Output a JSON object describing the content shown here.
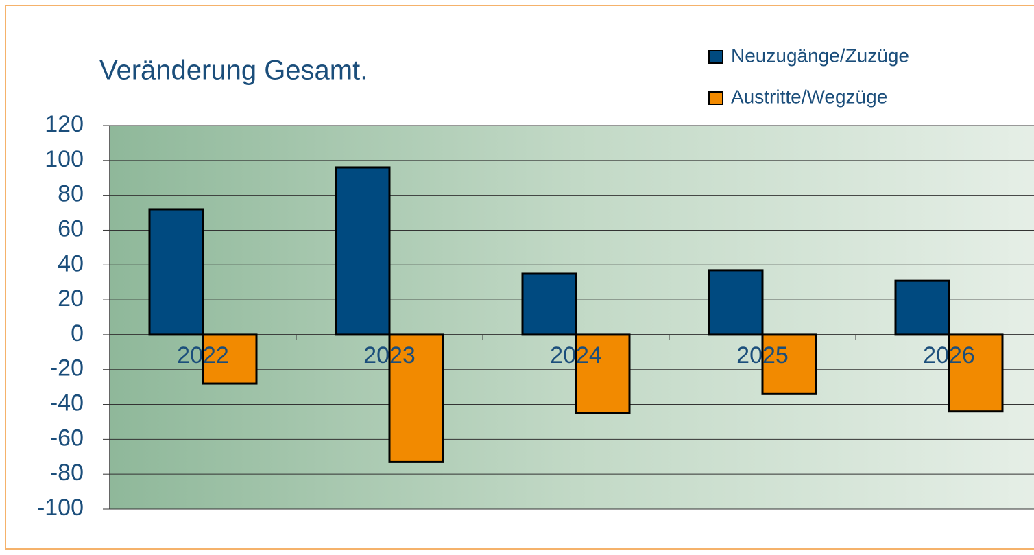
{
  "chart_data": {
    "type": "bar",
    "title": "Veränderung Gesamt.",
    "categories": [
      "2022",
      "2023",
      "2024",
      "2025",
      "2026"
    ],
    "series": [
      {
        "name": "Neuzugänge/Zuzüge",
        "color": "#004a80",
        "values": [
          72,
          96,
          35,
          37,
          31
        ]
      },
      {
        "name": "Austritte/Wegzüge",
        "color": "#f28a00",
        "values": [
          -28,
          -73,
          -45,
          -34,
          -44
        ]
      }
    ],
    "ylim": [
      -100,
      120
    ],
    "yticks": [
      -100,
      -80,
      -60,
      -40,
      -20,
      0,
      20,
      40,
      60,
      80,
      100,
      120
    ],
    "grid": true
  }
}
